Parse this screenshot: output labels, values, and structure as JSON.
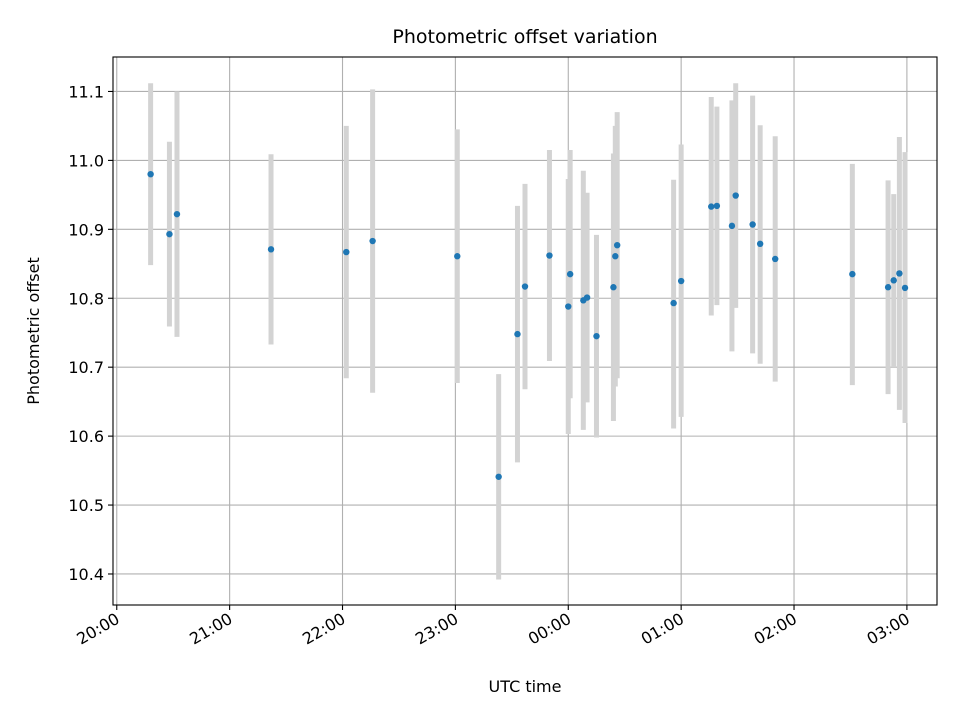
{
  "chart_data": {
    "type": "scatter",
    "title": "Photometric offset variation",
    "xlabel": "UTC time",
    "ylabel": "Photometric offset",
    "grid": true,
    "legend": "none",
    "colors": {
      "point": "#1f77b4",
      "errorbar": "#d3d3d3",
      "grid": "#b0b0b0",
      "axes": "#000000"
    },
    "xlim": [
      "19:58",
      "03:16"
    ],
    "ylim": [
      10.355,
      11.15
    ],
    "x_ticks": [
      "20:00",
      "21:00",
      "22:00",
      "23:00",
      "00:00",
      "01:00",
      "02:00",
      "03:00"
    ],
    "y_ticks": [
      10.4,
      10.5,
      10.6,
      10.7,
      10.8,
      10.9,
      11.0,
      11.1
    ],
    "points": [
      {
        "x": "20:18",
        "y": 10.98,
        "ylow": 10.848,
        "yhigh": 11.112
      },
      {
        "x": "20:28",
        "y": 10.893,
        "ylow": 10.759,
        "yhigh": 11.027
      },
      {
        "x": "20:32",
        "y": 10.922,
        "ylow": 10.744,
        "yhigh": 11.1
      },
      {
        "x": "21:22",
        "y": 10.871,
        "ylow": 10.733,
        "yhigh": 11.009
      },
      {
        "x": "22:02",
        "y": 10.867,
        "ylow": 10.684,
        "yhigh": 11.05
      },
      {
        "x": "22:16",
        "y": 10.883,
        "ylow": 10.663,
        "yhigh": 11.103
      },
      {
        "x": "23:01",
        "y": 10.861,
        "ylow": 10.677,
        "yhigh": 11.045
      },
      {
        "x": "23:23",
        "y": 10.541,
        "ylow": 10.392,
        "yhigh": 10.69
      },
      {
        "x": "23:33",
        "y": 10.748,
        "ylow": 10.562,
        "yhigh": 10.934
      },
      {
        "x": "23:37",
        "y": 10.817,
        "ylow": 10.668,
        "yhigh": 10.966
      },
      {
        "x": "23:50",
        "y": 10.862,
        "ylow": 10.709,
        "yhigh": 11.015
      },
      {
        "x": "00:00",
        "y": 10.788,
        "ylow": 10.603,
        "yhigh": 10.973
      },
      {
        "x": "00:01",
        "y": 10.835,
        "ylow": 10.655,
        "yhigh": 11.015
      },
      {
        "x": "00:08",
        "y": 10.797,
        "ylow": 10.609,
        "yhigh": 10.985
      },
      {
        "x": "00:10",
        "y": 10.801,
        "ylow": 10.649,
        "yhigh": 10.953
      },
      {
        "x": "00:15",
        "y": 10.745,
        "ylow": 10.598,
        "yhigh": 10.892
      },
      {
        "x": "00:24",
        "y": 10.816,
        "ylow": 10.622,
        "yhigh": 11.01
      },
      {
        "x": "00:25",
        "y": 10.861,
        "ylow": 10.672,
        "yhigh": 11.05
      },
      {
        "x": "00:26",
        "y": 10.877,
        "ylow": 10.684,
        "yhigh": 11.07
      },
      {
        "x": "00:56",
        "y": 10.793,
        "ylow": 10.611,
        "yhigh": 10.972
      },
      {
        "x": "01:00",
        "y": 10.825,
        "ylow": 10.628,
        "yhigh": 11.023
      },
      {
        "x": "01:16",
        "y": 10.933,
        "ylow": 10.775,
        "yhigh": 11.092
      },
      {
        "x": "01:19",
        "y": 10.934,
        "ylow": 10.79,
        "yhigh": 11.078
      },
      {
        "x": "01:27",
        "y": 10.905,
        "ylow": 10.723,
        "yhigh": 11.087
      },
      {
        "x": "01:29",
        "y": 10.949,
        "ylow": 10.786,
        "yhigh": 11.112
      },
      {
        "x": "01:38",
        "y": 10.907,
        "ylow": 10.72,
        "yhigh": 11.094
      },
      {
        "x": "01:42",
        "y": 10.879,
        "ylow": 10.705,
        "yhigh": 11.051
      },
      {
        "x": "01:50",
        "y": 10.857,
        "ylow": 10.679,
        "yhigh": 11.035
      },
      {
        "x": "02:31",
        "y": 10.835,
        "ylow": 10.674,
        "yhigh": 10.995
      },
      {
        "x": "02:50",
        "y": 10.816,
        "ylow": 10.661,
        "yhigh": 10.971
      },
      {
        "x": "02:53",
        "y": 10.826,
        "ylow": 10.7,
        "yhigh": 10.951
      },
      {
        "x": "02:56",
        "y": 10.836,
        "ylow": 10.638,
        "yhigh": 11.034
      },
      {
        "x": "02:59",
        "y": 10.815,
        "ylow": 10.619,
        "yhigh": 11.012
      }
    ]
  }
}
